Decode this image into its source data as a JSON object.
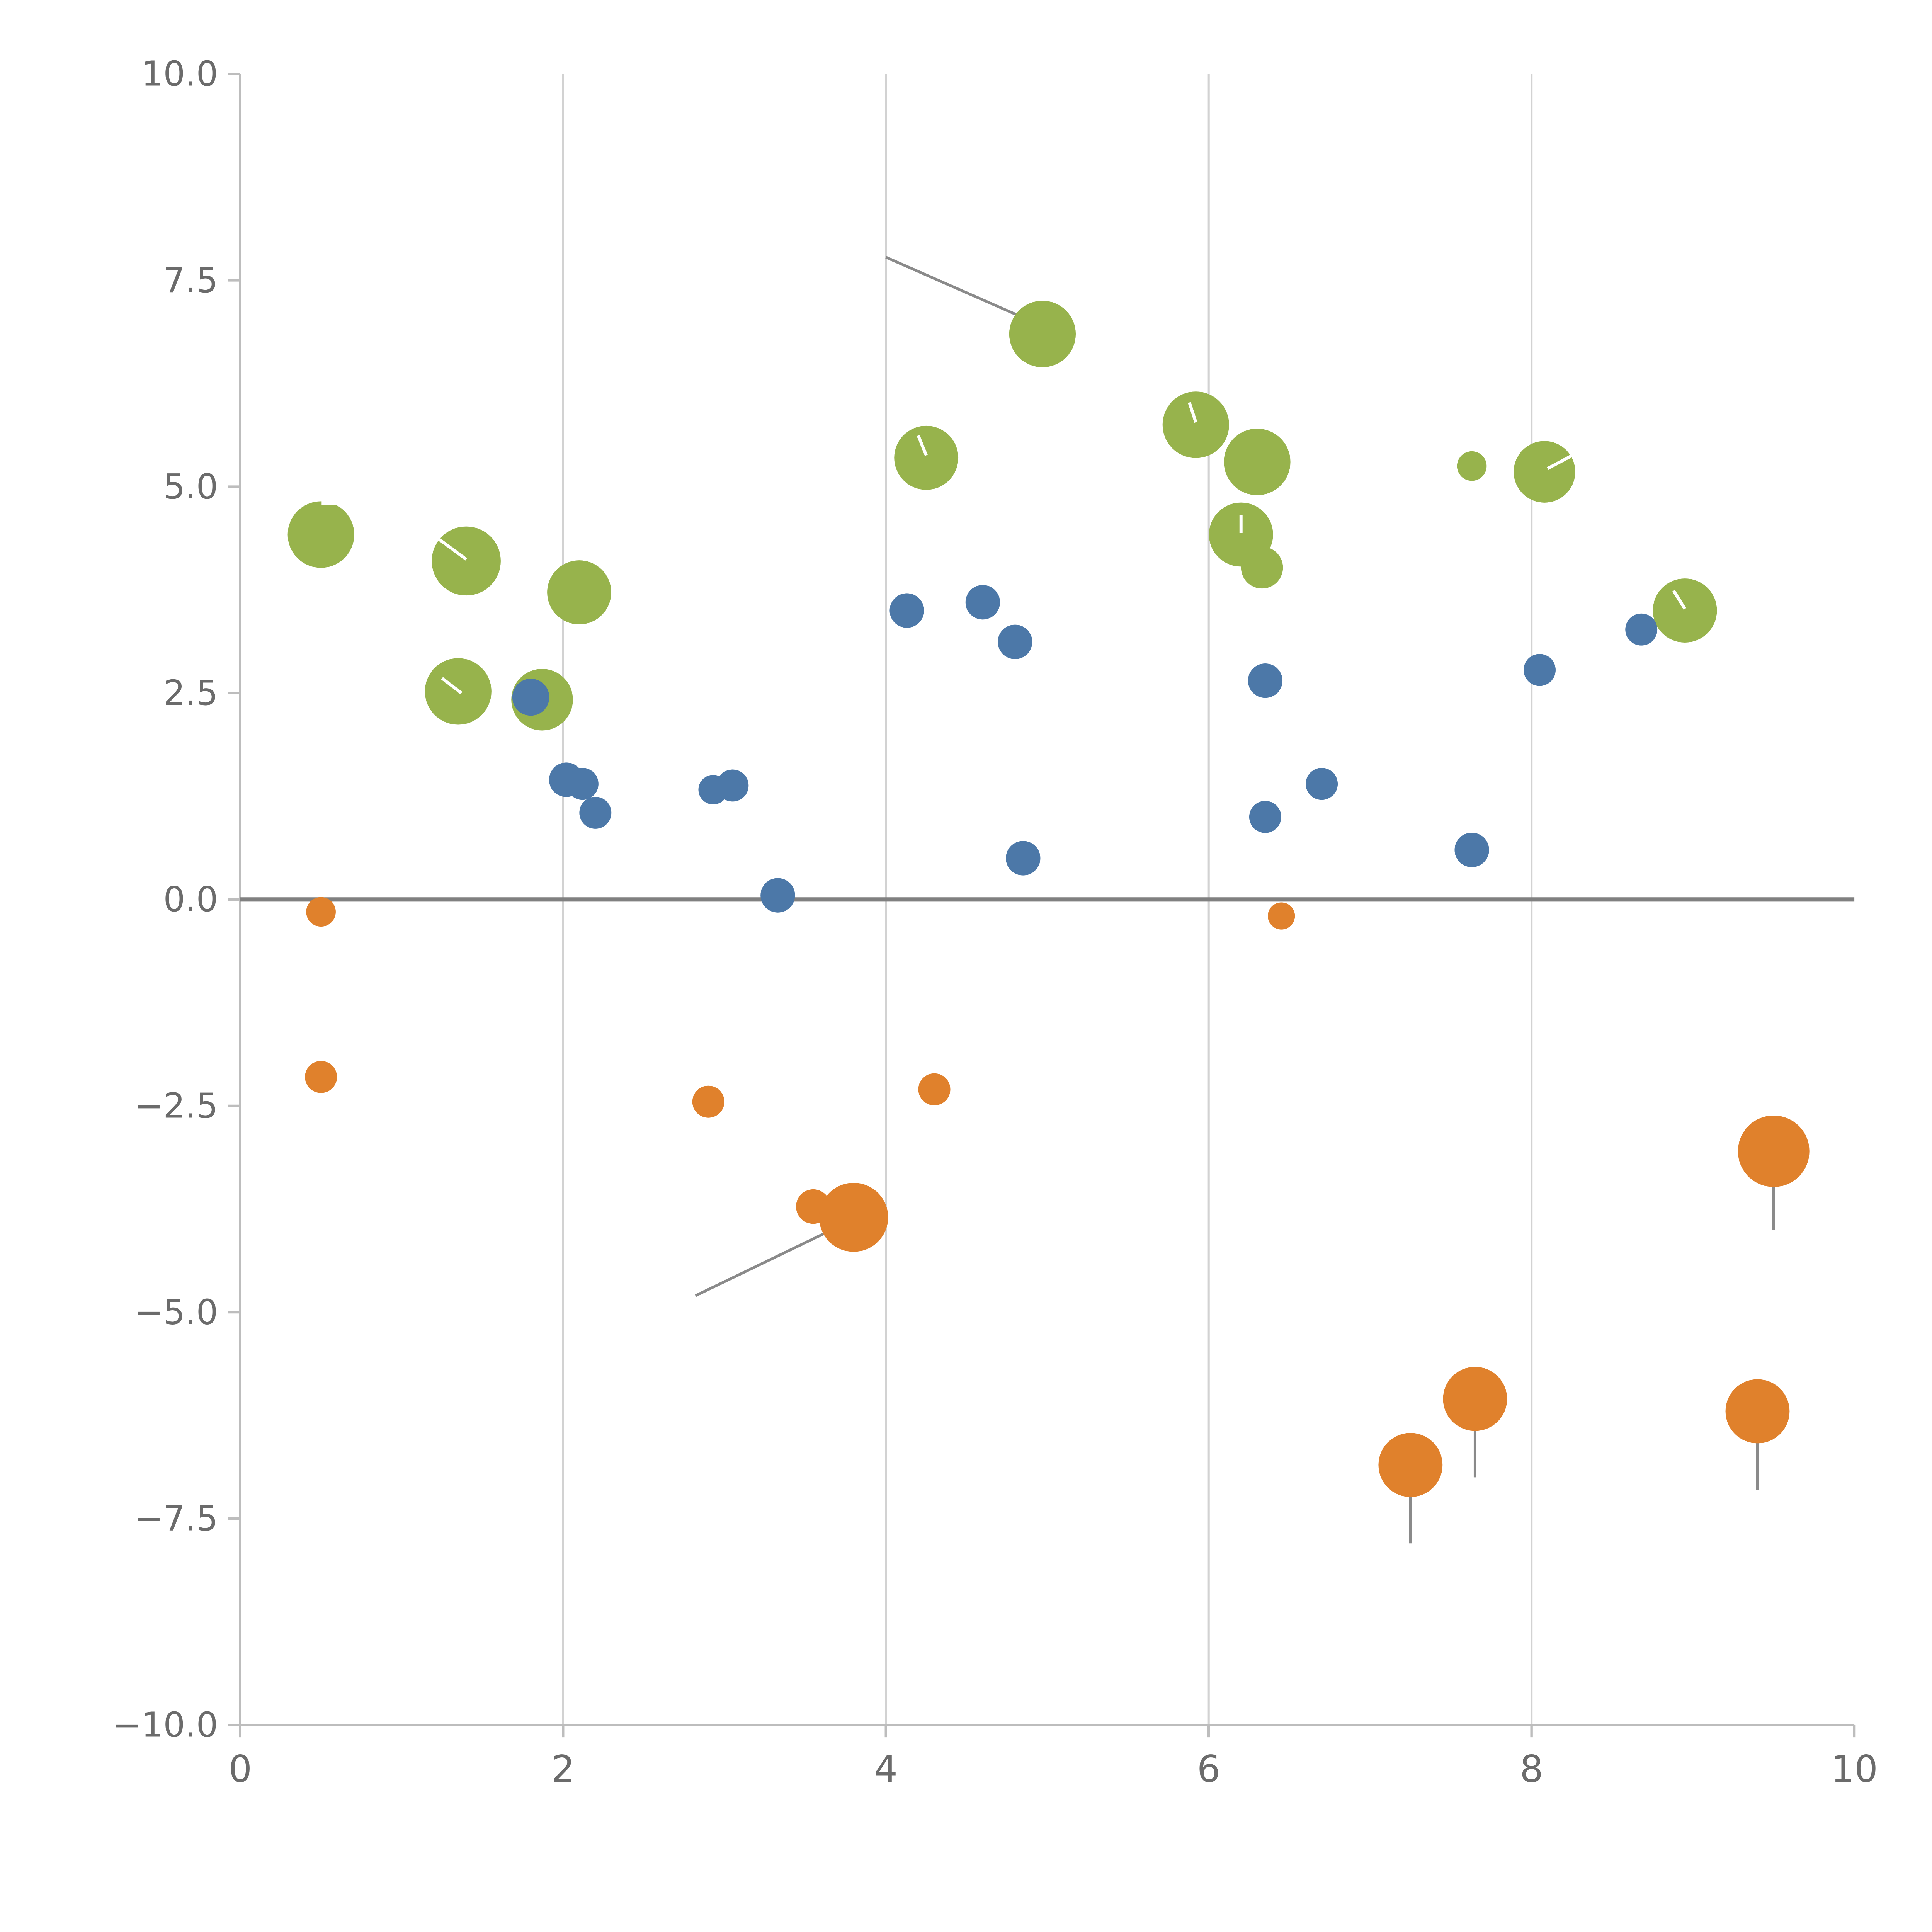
{
  "chart_data": {
    "type": "scatter",
    "title": "",
    "xlabel": "",
    "ylabel": "",
    "xlim": [
      0,
      10
    ],
    "ylim": [
      -10,
      10
    ],
    "legend": "none",
    "grid": "vertical-only",
    "x_ticks": [
      {
        "value": 0,
        "label": "0"
      },
      {
        "value": 2,
        "label": "2"
      },
      {
        "value": 4,
        "label": "4"
      },
      {
        "value": 6,
        "label": "6"
      },
      {
        "value": 8,
        "label": "8"
      },
      {
        "value": 10,
        "label": "10"
      }
    ],
    "y_ticks": [
      {
        "value": -10,
        "label": "−10.0"
      },
      {
        "value": -7.5,
        "label": "−7.5"
      },
      {
        "value": -5,
        "label": "−5.0"
      },
      {
        "value": -2.5,
        "label": "−2.5"
      },
      {
        "value": 0,
        "label": "0.0"
      },
      {
        "value": 2.5,
        "label": "2.5"
      },
      {
        "value": 5,
        "label": "5.0"
      },
      {
        "value": 7.5,
        "label": "7.5"
      },
      {
        "value": 10,
        "label": "10.0"
      }
    ],
    "gridline_x_values": [
      2,
      4,
      6,
      8
    ],
    "zero_line_y": 0,
    "colors": {
      "green": "#97b34c",
      "orange": "#e0812c",
      "blue": "#4c78a8",
      "grid": "#d2d2d2",
      "axis": "#bdbdbd",
      "tick_label": "#6b6b6b",
      "zero_line": "#808080",
      "leader": "#8a8a8a",
      "annotation_text": "#ffffff"
    },
    "series": [
      {
        "name": "green",
        "color_key": "green",
        "points": [
          [
            0.5,
            4.42,
            27
          ],
          [
            1.4,
            4.1,
            28
          ],
          [
            1.35,
            2.52,
            27
          ],
          [
            1.87,
            2.42,
            25
          ],
          [
            2.1,
            3.72,
            26
          ],
          [
            4.25,
            5.35,
            26
          ],
          [
            4.97,
            6.85,
            27
          ],
          [
            5.92,
            5.75,
            27
          ],
          [
            6.3,
            5.3,
            27
          ],
          [
            6.2,
            4.42,
            26
          ],
          [
            6.33,
            4.02,
            17
          ],
          [
            7.63,
            5.25,
            12
          ],
          [
            8.08,
            5.18,
            25
          ],
          [
            8.95,
            3.5,
            26
          ]
        ]
      },
      {
        "name": "orange",
        "color_key": "orange",
        "points": [
          [
            0.5,
            -0.15,
            12
          ],
          [
            0.5,
            -2.15,
            13
          ],
          [
            2.9,
            -2.45,
            13
          ],
          [
            3.55,
            -3.72,
            14
          ],
          [
            3.8,
            -3.85,
            28
          ],
          [
            4.3,
            -2.3,
            13
          ],
          [
            6.45,
            -0.2,
            11
          ],
          [
            7.25,
            -6.85,
            26
          ],
          [
            7.65,
            -6.05,
            26
          ],
          [
            9.5,
            -3.05,
            29
          ],
          [
            9.4,
            -6.2,
            26
          ]
        ]
      },
      {
        "name": "blue",
        "color_key": "blue",
        "points": [
          [
            1.8,
            2.45,
            15
          ],
          [
            2.02,
            1.45,
            14
          ],
          [
            2.12,
            1.4,
            13
          ],
          [
            2.2,
            1.05,
            13
          ],
          [
            2.93,
            1.33,
            12
          ],
          [
            3.05,
            1.38,
            13
          ],
          [
            3.33,
            0.05,
            14
          ],
          [
            4.13,
            3.5,
            14
          ],
          [
            4.6,
            3.6,
            14
          ],
          [
            4.8,
            3.12,
            14
          ],
          [
            4.85,
            0.5,
            14
          ],
          [
            6.35,
            2.65,
            14
          ],
          [
            6.35,
            1.0,
            13
          ],
          [
            6.7,
            1.4,
            13
          ],
          [
            7.63,
            0.6,
            14
          ],
          [
            8.05,
            2.78,
            13
          ],
          [
            8.68,
            3.27,
            13
          ]
        ]
      }
    ],
    "annotations": {
      "leader_lines": [
        {
          "x1": 4.0,
          "y1": 7.78,
          "x2": 4.93,
          "y2": 6.98
        },
        {
          "x1": 2.82,
          "y1": -4.8,
          "x2": 3.72,
          "y2": -3.95
        }
      ],
      "stems": [
        {
          "x": 7.25,
          "y_from": -7.8,
          "y_to": -6.85
        },
        {
          "x": 7.65,
          "y_from": -7.0,
          "y_to": -6.05
        },
        {
          "x": 9.5,
          "y_from": -4.0,
          "y_to": -3.05
        },
        {
          "x": 9.4,
          "y_from": -7.15,
          "y_to": -6.2
        }
      ],
      "white_ticks": [
        [
          1.22,
          4.38,
          1.4,
          4.12
        ],
        [
          1.25,
          2.68,
          1.37,
          2.5
        ],
        [
          4.2,
          5.62,
          4.25,
          5.38
        ],
        [
          5.88,
          6.02,
          5.92,
          5.78
        ],
        [
          6.2,
          4.66,
          6.2,
          4.44
        ],
        [
          8.1,
          5.22,
          8.32,
          5.45
        ],
        [
          8.88,
          3.74,
          8.95,
          3.52
        ]
      ],
      "labels": [
        {
          "text": "B",
          "x": 0.48,
          "y": 4.78
        }
      ]
    }
  }
}
